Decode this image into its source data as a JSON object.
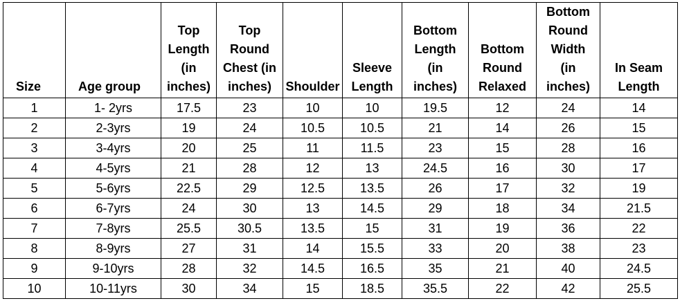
{
  "table": {
    "headers": [
      "Size",
      "Age group",
      "Top\nLength\n(in\ninches)",
      "Top\nRound\nChest (in\ninches)",
      "Shoulder",
      "Sleeve\nLength",
      "Bottom\nLength\n(in\ninches)",
      "Bottom\nRound\nRelaxed",
      "Bottom\nRound\nWidth\n(in\ninches)",
      "In Seam\nLength"
    ],
    "rows": [
      [
        "1",
        "1- 2yrs",
        "17.5",
        "23",
        "10",
        "10",
        "19.5",
        "12",
        "24",
        "14"
      ],
      [
        "2",
        "2-3yrs",
        "19",
        "24",
        "10.5",
        "10.5",
        "21",
        "14",
        "26",
        "15"
      ],
      [
        "3",
        "3-4yrs",
        "20",
        "25",
        "11",
        "11.5",
        "23",
        "15",
        "28",
        "16"
      ],
      [
        "4",
        "4-5yrs",
        "21",
        "28",
        "12",
        "13",
        "24.5",
        "16",
        "30",
        "17"
      ],
      [
        "5",
        "5-6yrs",
        "22.5",
        "29",
        "12.5",
        "13.5",
        "26",
        "17",
        "32",
        "19"
      ],
      [
        "6",
        "6-7yrs",
        "24",
        "30",
        "13",
        "14.5",
        "29",
        "18",
        "34",
        "21.5"
      ],
      [
        "7",
        "7-8yrs",
        "25.5",
        "30.5",
        "13.5",
        "15",
        "31",
        "19",
        "36",
        "22"
      ],
      [
        "8",
        "8-9yrs",
        "27",
        "31",
        "14",
        "15.5",
        "33",
        "20",
        "38",
        "23"
      ],
      [
        "9",
        "9-10yrs",
        "28",
        "32",
        "14.5",
        "16.5",
        "35",
        "21",
        "40",
        "24.5"
      ],
      [
        "10",
        "10-11yrs",
        "30",
        "34",
        "15",
        "18.5",
        "35.5",
        "22",
        "42",
        "25.5"
      ]
    ]
  }
}
